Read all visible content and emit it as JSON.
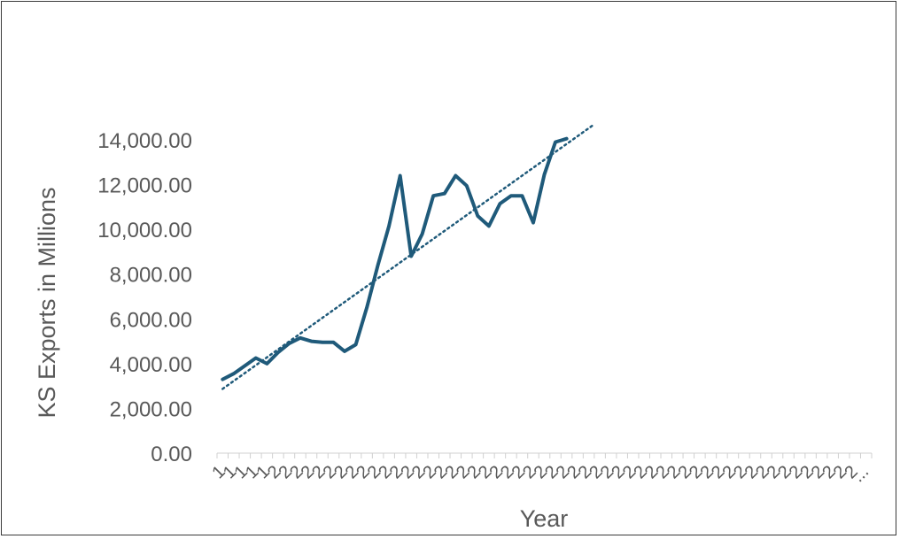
{
  "chart_data": {
    "type": "line",
    "title": "",
    "xlabel": "Year",
    "ylabel": "KS Exports in Millions",
    "ylim": [
      0,
      14000
    ],
    "y_ticks": [
      "0.00",
      "2,000.00",
      "4,000.00",
      "6,000.00",
      "8,000.00",
      "10,000.00",
      "12,000.00",
      "14,000.00"
    ],
    "x_tick_labels": [
      "1",
      "1",
      "1",
      "1",
      "1",
      "2",
      "2",
      "2",
      "2",
      "2",
      "2",
      "2",
      "2",
      "2",
      "2",
      "2",
      "2",
      "2",
      "2",
      "2",
      "2",
      "2",
      "2",
      "2",
      "2",
      "2",
      "2",
      "2",
      "2",
      "2",
      "2",
      "2",
      "2",
      "2",
      "2",
      "2",
      "2",
      "2",
      "2",
      "2",
      "2",
      "2",
      "2",
      "2",
      "2",
      "2",
      "2",
      "2",
      "2",
      "2",
      "2",
      "2",
      "2",
      "2",
      "2",
      "2",
      "2",
      "2",
      "..."
    ],
    "grid": false,
    "legend": "none",
    "series": [
      {
        "values": [
          3300,
          3550,
          3900,
          4250,
          4000,
          4500,
          4900,
          5150,
          5000,
          4950,
          4950,
          4550,
          4850,
          6500,
          8400,
          10150,
          12400,
          8800,
          9800,
          11500,
          11600,
          12400,
          11950,
          10600,
          10150,
          11150,
          11500,
          11500,
          10300,
          12450,
          13900,
          14050
        ],
        "trendline": "linear",
        "color": "#1f5a7a"
      }
    ]
  }
}
